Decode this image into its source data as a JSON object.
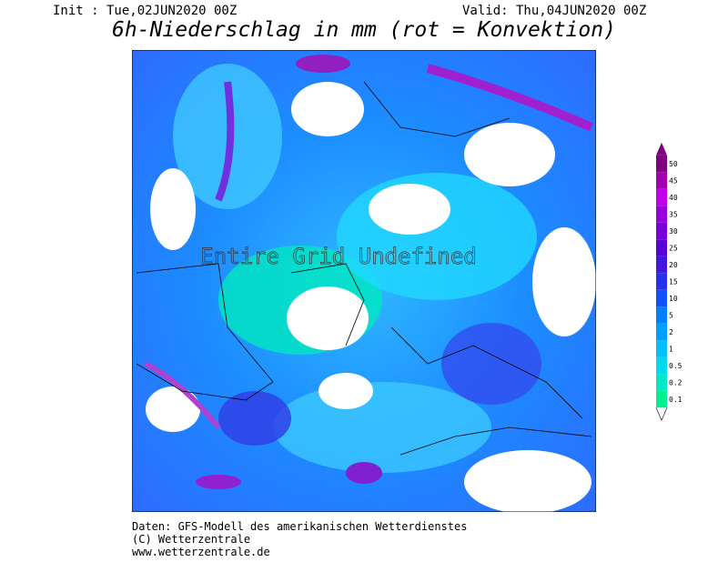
{
  "header": {
    "init": "Init : Tue,02JUN2020 00Z",
    "valid": "Valid: Thu,04JUN2020 00Z",
    "title": "6h-Niederschlag in mm (rot = Konvektion)"
  },
  "map": {
    "overlay": "Entire Grid Undefined"
  },
  "legend": {
    "levels": [
      0.1,
      0.2,
      0.5,
      1,
      2,
      5,
      10,
      15,
      20,
      25,
      30,
      35,
      40,
      45,
      50
    ],
    "colors": [
      "#00f090",
      "#00e8c8",
      "#00d8f0",
      "#00c0ff",
      "#00a0ff",
      "#0080ff",
      "#1050ff",
      "#2830f0",
      "#4018e0",
      "#5800d8",
      "#7800d8",
      "#9800e0",
      "#c000e8",
      "#a000b0",
      "#800080"
    ]
  },
  "footer": {
    "lines": [
      "Daten: GFS-Modell des amerikanischen Wetterdienstes",
      "(C) Wetterzentrale",
      "www.wetterzentrale.de"
    ]
  }
}
